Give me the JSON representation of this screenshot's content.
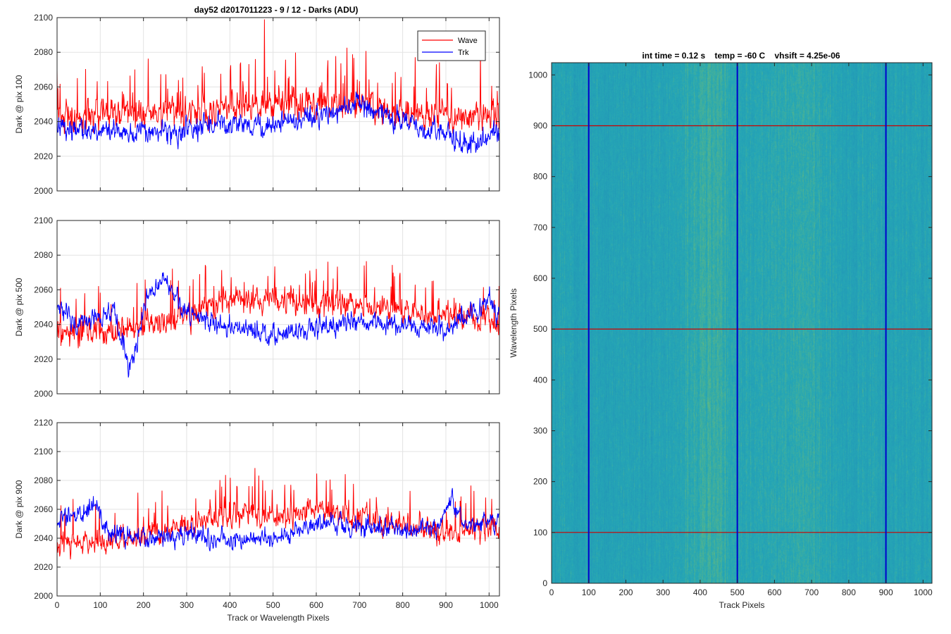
{
  "figure": {
    "title_left": "day52 d2017011223 - 9 / 12 - Darks (ADU)",
    "title_right": "int time = 0.12 s    temp = -60 C    vhsift = 4.25e-06"
  },
  "chart_data": [
    {
      "type": "line",
      "ylabel": "Dark @ pix 100",
      "xlabel": "",
      "xlim": [
        0,
        1024
      ],
      "ylim": [
        2000,
        2100
      ],
      "xticks": [
        "0",
        "100",
        "200",
        "300",
        "400",
        "500",
        "600",
        "700",
        "800",
        "900",
        "1000"
      ],
      "yticks": [
        "2000",
        "2020",
        "2040",
        "2060",
        "2080",
        "2100"
      ],
      "grid": true,
      "legend": {
        "placement": "top-right",
        "entries": [
          "Wave",
          "Trk"
        ]
      },
      "series": [
        {
          "name": "Wave",
          "color": "#ff0000",
          "baseline": [
            [
              0,
              2044
            ],
            [
              100,
              2043
            ],
            [
              200,
              2044
            ],
            [
              300,
              2046
            ],
            [
              400,
              2048
            ],
            [
              500,
              2050
            ],
            [
              600,
              2050
            ],
            [
              700,
              2049
            ],
            [
              800,
              2046
            ],
            [
              900,
              2043
            ],
            [
              1024,
              2045
            ]
          ],
          "noise": 7.5,
          "spike_rate": 0.06,
          "spike_amp": 22,
          "peak": [
            480,
            2099
          ]
        },
        {
          "name": "Trk",
          "color": "#0000ff",
          "baseline": [
            [
              0,
              2036
            ],
            [
              100,
              2035
            ],
            [
              200,
              2034
            ],
            [
              300,
              2035
            ],
            [
              400,
              2038
            ],
            [
              500,
              2037
            ],
            [
              600,
              2044
            ],
            [
              700,
              2050
            ],
            [
              800,
              2040
            ],
            [
              900,
              2032
            ],
            [
              960,
              2026
            ],
            [
              1024,
              2033
            ]
          ],
          "noise": 5.5,
          "spike_rate": 0.0,
          "spike_amp": 0
        }
      ]
    },
    {
      "type": "line",
      "ylabel": "Dark @ pix 500",
      "xlabel": "",
      "xlim": [
        0,
        1024
      ],
      "ylim": [
        2000,
        2100
      ],
      "xticks": [
        "0",
        "100",
        "200",
        "300",
        "400",
        "500",
        "600",
        "700",
        "800",
        "900",
        "1000"
      ],
      "yticks": [
        "2000",
        "2020",
        "2040",
        "2060",
        "2080",
        "2100"
      ],
      "grid": true,
      "series": [
        {
          "name": "Wave",
          "color": "#ff0000",
          "baseline": [
            [
              0,
              2035
            ],
            [
              100,
              2037
            ],
            [
              200,
              2038
            ],
            [
              300,
              2045
            ],
            [
              400,
              2054
            ],
            [
              500,
              2055
            ],
            [
              600,
              2053
            ],
            [
              700,
              2050
            ],
            [
              800,
              2048
            ],
            [
              900,
              2045
            ],
            [
              1024,
              2042
            ]
          ],
          "noise": 6.5,
          "spike_rate": 0.05,
          "spike_amp": 20
        },
        {
          "name": "Trk",
          "color": "#0000ff",
          "baseline": [
            [
              0,
              2050
            ],
            [
              50,
              2040
            ],
            [
              100,
              2044
            ],
            [
              130,
              2048
            ],
            [
              150,
              2032
            ],
            [
              165,
              2014
            ],
            [
              190,
              2035
            ],
            [
              215,
              2060
            ],
            [
              245,
              2066
            ],
            [
              275,
              2056
            ],
            [
              300,
              2046
            ],
            [
              400,
              2039
            ],
            [
              500,
              2034
            ],
            [
              600,
              2038
            ],
            [
              700,
              2041
            ],
            [
              800,
              2040
            ],
            [
              900,
              2037
            ],
            [
              960,
              2048
            ],
            [
              1000,
              2055
            ],
            [
              1024,
              2043
            ]
          ],
          "noise": 5.0,
          "spike_rate": 0.0,
          "spike_amp": 0
        }
      ]
    },
    {
      "type": "line",
      "ylabel": "Dark @ pix 900",
      "xlabel": "Track or Wavelength Pixels",
      "xlim": [
        0,
        1024
      ],
      "ylim": [
        2000,
        2120
      ],
      "xticks": [
        "0",
        "100",
        "200",
        "300",
        "400",
        "500",
        "600",
        "700",
        "800",
        "900",
        "1000"
      ],
      "yticks": [
        "2000",
        "2020",
        "2040",
        "2060",
        "2080",
        "2100",
        "2120"
      ],
      "grid": true,
      "series": [
        {
          "name": "Wave",
          "color": "#ff0000",
          "baseline": [
            [
              0,
              2036
            ],
            [
              100,
              2038
            ],
            [
              200,
              2040
            ],
            [
              300,
              2048
            ],
            [
              400,
              2057
            ],
            [
              500,
              2056
            ],
            [
              600,
              2058
            ],
            [
              700,
              2054
            ],
            [
              800,
              2049
            ],
            [
              900,
              2044
            ],
            [
              1024,
              2046
            ]
          ],
          "noise": 7.0,
          "spike_rate": 0.05,
          "spike_amp": 22
        },
        {
          "name": "Trk",
          "color": "#0000ff",
          "baseline": [
            [
              0,
              2050
            ],
            [
              60,
              2060
            ],
            [
              90,
              2064
            ],
            [
              120,
              2042
            ],
            [
              200,
              2040
            ],
            [
              300,
              2043
            ],
            [
              400,
              2038
            ],
            [
              500,
              2040
            ],
            [
              600,
              2050
            ],
            [
              700,
              2048
            ],
            [
              800,
              2046
            ],
            [
              880,
              2046
            ],
            [
              915,
              2066
            ],
            [
              940,
              2050
            ],
            [
              1024,
              2053
            ]
          ],
          "noise": 5.5,
          "spike_rate": 0.0,
          "spike_amp": 0
        }
      ]
    },
    {
      "type": "heatmap",
      "xlabel": "Track Pixels",
      "ylabel": "Wavelength Pixels",
      "xlim": [
        0,
        1024
      ],
      "ylim": [
        0,
        1024
      ],
      "xticks": [
        "0",
        "100",
        "200",
        "300",
        "400",
        "500",
        "600",
        "700",
        "800",
        "900",
        "1000"
      ],
      "yticks": [
        "0",
        "100",
        "200",
        "300",
        "400",
        "500",
        "600",
        "700",
        "800",
        "900",
        "1000"
      ],
      "colormap": [
        "#1e8ab9",
        "#26a7b5",
        "#8cc55a"
      ],
      "vertical_lines": {
        "x": [
          100,
          500,
          900
        ],
        "color": "#0000cc"
      },
      "horizontal_lines": {
        "y": [
          100,
          500,
          900
        ],
        "color": "#cc0000"
      }
    }
  ]
}
